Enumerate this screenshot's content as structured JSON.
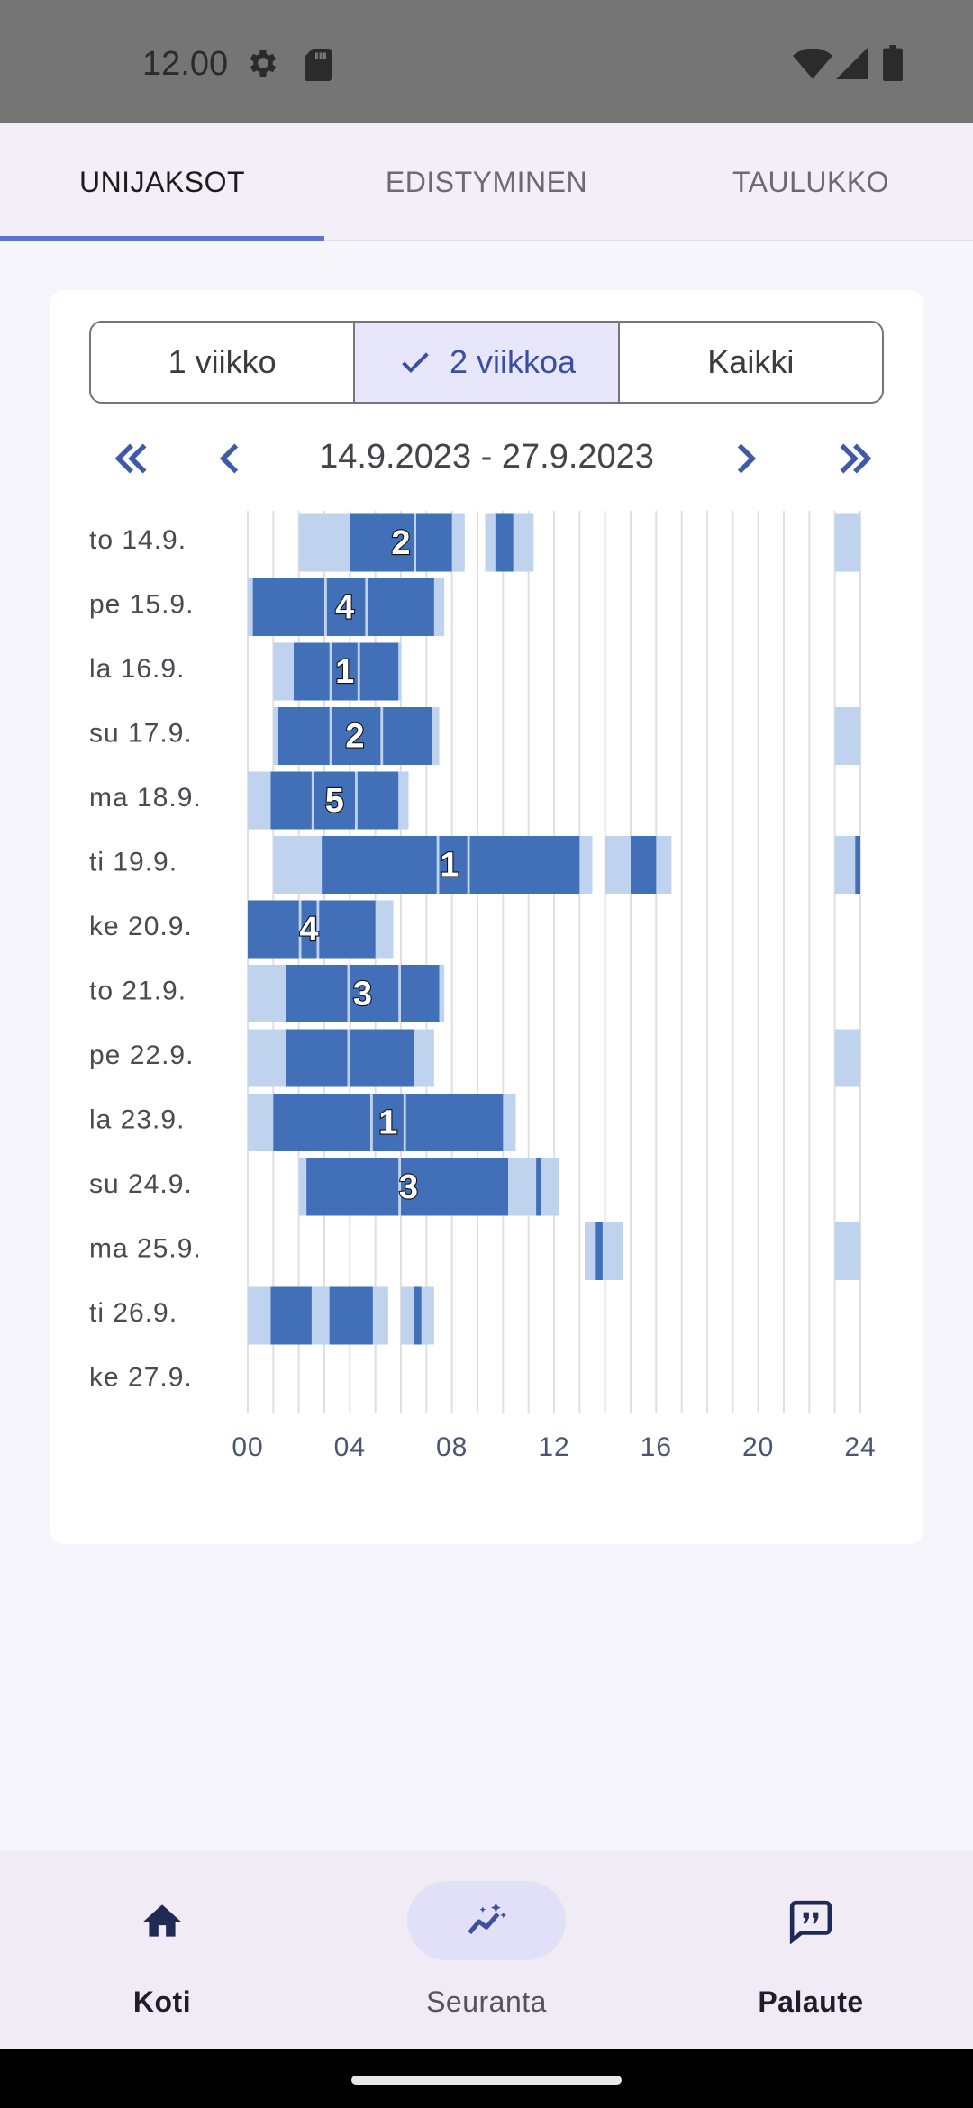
{
  "status_bar": {
    "time": "12.00",
    "icons": [
      "gear-icon",
      "sd-card-icon",
      "wifi-icon",
      "signal-icon",
      "battery-icon"
    ]
  },
  "tabs": [
    {
      "label": "UNIJAKSOT",
      "active": true
    },
    {
      "label": "EDISTYMINEN",
      "active": false
    },
    {
      "label": "TAULUKKO",
      "active": false
    }
  ],
  "segmented": {
    "options": [
      {
        "label": "1 viikko",
        "selected": false
      },
      {
        "label": "2 viikkoa",
        "selected": true
      },
      {
        "label": "Kaikki",
        "selected": false
      }
    ]
  },
  "date_range": "14.9.2023 - 27.9.2023",
  "chart_data": {
    "type": "sleep-timeline",
    "x_ticks": [
      "00",
      "04",
      "08",
      "12",
      "16",
      "20",
      "24"
    ],
    "x_range": [
      0,
      24
    ],
    "colors": {
      "light": "#bfd3ee",
      "dark": "#416fb8",
      "grid": "#e0e0e0"
    },
    "rows": [
      {
        "day": "to 14.9.",
        "label": "2",
        "label_hour": 6.0,
        "light": [
          [
            2.0,
            8.5
          ],
          [
            9.3,
            11.2
          ],
          [
            23.0,
            24.0
          ]
        ],
        "dark": [
          [
            4.0,
            6.5
          ],
          [
            6.6,
            8.0
          ],
          [
            9.7,
            10.4
          ]
        ]
      },
      {
        "day": "pe 15.9.",
        "label": "4",
        "label_hour": 3.8,
        "light": [
          [
            0.0,
            7.7
          ]
        ],
        "dark": [
          [
            0.2,
            3.0
          ],
          [
            3.1,
            4.6
          ],
          [
            4.7,
            7.3
          ]
        ]
      },
      {
        "day": "la 16.9.",
        "label": "1",
        "label_hour": 3.8,
        "light": [
          [
            1.0,
            6.0
          ]
        ],
        "dark": [
          [
            1.8,
            3.2
          ],
          [
            3.3,
            4.3
          ],
          [
            4.4,
            5.9
          ]
        ]
      },
      {
        "day": "su 17.9.",
        "label": "2",
        "label_hour": 4.2,
        "light": [
          [
            1.0,
            7.5
          ],
          [
            23.0,
            24.0
          ]
        ],
        "dark": [
          [
            1.2,
            3.2
          ],
          [
            3.3,
            5.2
          ],
          [
            5.3,
            7.2
          ]
        ]
      },
      {
        "day": "ma 18.9.",
        "label": "5",
        "label_hour": 3.4,
        "light": [
          [
            0.0,
            6.3
          ]
        ],
        "dark": [
          [
            0.9,
            2.5
          ],
          [
            2.6,
            4.2
          ],
          [
            4.3,
            5.9
          ]
        ]
      },
      {
        "day": "ti 19.9.",
        "label": "1",
        "label_hour": 7.9,
        "light": [
          [
            1.0,
            13.5
          ],
          [
            14.0,
            16.6
          ],
          [
            23.0,
            24.0
          ]
        ],
        "dark": [
          [
            2.9,
            7.4
          ],
          [
            7.5,
            8.6
          ],
          [
            8.7,
            13.0
          ],
          [
            15.0,
            16.0
          ],
          [
            23.8,
            24.0
          ]
        ]
      },
      {
        "day": "ke 20.9.",
        "label": "4",
        "label_hour": 2.4,
        "light": [
          [
            0.0,
            5.7
          ]
        ],
        "dark": [
          [
            0.0,
            2.0
          ],
          [
            2.1,
            2.7
          ],
          [
            2.8,
            5.0
          ]
        ]
      },
      {
        "day": "to 21.9.",
        "label": "3",
        "label_hour": 4.5,
        "light": [
          [
            0.0,
            7.7
          ]
        ],
        "dark": [
          [
            1.5,
            3.9
          ],
          [
            4.0,
            5.9
          ],
          [
            6.0,
            7.5
          ]
        ]
      },
      {
        "day": "pe 22.9.",
        "label": "",
        "label_hour": 0,
        "light": [
          [
            0.0,
            7.3
          ],
          [
            23.0,
            24.0
          ]
        ],
        "dark": [
          [
            1.5,
            3.9
          ],
          [
            4.0,
            6.5
          ]
        ]
      },
      {
        "day": "la 23.9.",
        "label": "1",
        "label_hour": 5.5,
        "light": [
          [
            0.0,
            10.5
          ]
        ],
        "dark": [
          [
            1.0,
            4.8
          ],
          [
            4.9,
            6.1
          ],
          [
            6.2,
            10.0
          ]
        ]
      },
      {
        "day": "su 24.9.",
        "label": "3",
        "label_hour": 6.3,
        "light": [
          [
            2.0,
            12.2
          ]
        ],
        "dark": [
          [
            2.3,
            5.9
          ],
          [
            6.0,
            10.2
          ],
          [
            11.3,
            11.5
          ]
        ]
      },
      {
        "day": "ma 25.9.",
        "label": "",
        "label_hour": 0,
        "light": [
          [
            13.2,
            14.7
          ],
          [
            23.0,
            24.0
          ]
        ],
        "dark": [
          [
            13.6,
            13.9
          ]
        ]
      },
      {
        "day": "ti 26.9.",
        "label": "",
        "label_hour": 0,
        "light": [
          [
            0.0,
            5.5
          ],
          [
            6.0,
            7.3
          ]
        ],
        "dark": [
          [
            0.9,
            2.5
          ],
          [
            3.2,
            4.9
          ],
          [
            6.5,
            6.8
          ]
        ]
      },
      {
        "day": "ke 27.9.",
        "label": "",
        "label_hour": 0,
        "light": [],
        "dark": []
      }
    ]
  },
  "bottom_nav": [
    {
      "label": "Koti",
      "icon": "home-icon",
      "active": false
    },
    {
      "label": "Seuranta",
      "icon": "trend-icon",
      "active": true
    },
    {
      "label": "Palaute",
      "icon": "feedback-icon",
      "active": false
    }
  ]
}
